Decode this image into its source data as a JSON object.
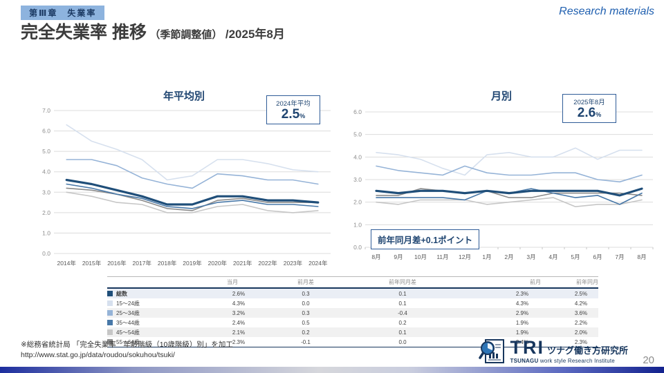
{
  "header": {
    "chapter_badge": "第Ⅲ章　失業率",
    "title_main": "完全失業率 推移",
    "title_sub": "（季節調整値）",
    "title_date": "/2025年8月",
    "watermark": "Research materials"
  },
  "chart_data": [
    {
      "type": "line",
      "title": "年平均別",
      "categories": [
        "2014年",
        "2015年",
        "2016年",
        "2017年",
        "2018年",
        "2019年",
        "2020年",
        "2021年",
        "2022年",
        "2023年",
        "2024年"
      ],
      "ylim": [
        0,
        7
      ],
      "ytick_step": 1,
      "grid": true,
      "xticks": false,
      "series": [
        {
          "name": "15～24歳",
          "color": "#d6e0ee",
          "width": 1.6,
          "values": [
            6.3,
            5.5,
            5.1,
            4.6,
            3.6,
            3.8,
            4.6,
            4.6,
            4.4,
            4.1,
            4.0
          ]
        },
        {
          "name": "25～34歳",
          "color": "#95b3d7",
          "width": 1.6,
          "values": [
            4.6,
            4.6,
            4.3,
            3.7,
            3.4,
            3.2,
            3.9,
            3.8,
            3.6,
            3.6,
            3.4
          ]
        },
        {
          "name": "45～54歳",
          "color": "#c6c6c6",
          "width": 1.6,
          "values": [
            3.0,
            2.8,
            2.5,
            2.4,
            2.0,
            2.0,
            2.3,
            2.4,
            2.1,
            2.0,
            2.1
          ]
        },
        {
          "name": "55～64歳",
          "color": "#8a8a8a",
          "width": 1.6,
          "values": [
            3.2,
            3.1,
            2.9,
            2.6,
            2.2,
            2.1,
            2.6,
            2.7,
            2.5,
            2.5,
            2.5
          ]
        },
        {
          "name": "35～44歳",
          "color": "#4878a8",
          "width": 1.6,
          "values": [
            3.4,
            3.2,
            2.9,
            2.7,
            2.3,
            2.2,
            2.5,
            2.6,
            2.4,
            2.4,
            2.3
          ]
        },
        {
          "name": "総数",
          "color": "#1f4e79",
          "width": 3.2,
          "values": [
            3.6,
            3.4,
            3.1,
            2.8,
            2.4,
            2.4,
            2.8,
            2.8,
            2.6,
            2.6,
            2.5
          ]
        }
      ],
      "callout": {
        "label": "2024年平均",
        "value": "2.5",
        "unit": "%"
      }
    },
    {
      "type": "line",
      "title": "月別",
      "categories": [
        "8月",
        "9月",
        "10月",
        "11月",
        "12月",
        "1月",
        "2月",
        "3月",
        "4月",
        "5月",
        "6月",
        "7月",
        "8月"
      ],
      "ylim": [
        0,
        6
      ],
      "ytick_step": 1,
      "grid": true,
      "xticks": true,
      "series": [
        {
          "name": "15～24歳",
          "color": "#d6e0ee",
          "width": 1.6,
          "values": [
            4.2,
            4.1,
            3.9,
            3.5,
            3.2,
            4.1,
            4.2,
            4.0,
            4.0,
            4.4,
            3.9,
            4.3,
            4.3
          ]
        },
        {
          "name": "25～34歳",
          "color": "#95b3d7",
          "width": 1.6,
          "values": [
            3.6,
            3.4,
            3.3,
            3.2,
            3.6,
            3.3,
            3.2,
            3.2,
            3.3,
            3.3,
            3.0,
            2.9,
            3.2
          ]
        },
        {
          "name": "45～54歳",
          "color": "#c6c6c6",
          "width": 1.6,
          "values": [
            2.0,
            1.9,
            2.1,
            2.1,
            2.1,
            1.9,
            2.0,
            2.1,
            2.2,
            1.8,
            1.9,
            1.9,
            2.1
          ]
        },
        {
          "name": "55～64歳",
          "color": "#8a8a8a",
          "width": 1.6,
          "values": [
            2.3,
            2.3,
            2.6,
            2.5,
            2.4,
            2.5,
            2.2,
            2.2,
            2.4,
            2.4,
            2.4,
            2.4,
            2.3
          ]
        },
        {
          "name": "35～44歳",
          "color": "#4878a8",
          "width": 1.6,
          "values": [
            2.2,
            2.2,
            2.2,
            2.2,
            2.1,
            2.5,
            2.4,
            2.6,
            2.4,
            2.2,
            2.3,
            1.9,
            2.4
          ]
        },
        {
          "name": "総数",
          "color": "#1f4e79",
          "width": 3.2,
          "values": [
            2.5,
            2.4,
            2.5,
            2.5,
            2.4,
            2.5,
            2.4,
            2.5,
            2.5,
            2.5,
            2.5,
            2.3,
            2.6
          ]
        }
      ],
      "callout": {
        "label": "2025年8月",
        "value": "2.6",
        "unit": "%"
      },
      "annotation": "前年同月差+0.1ポイント"
    }
  ],
  "table": {
    "col_headers": [
      "当月",
      "前月差",
      "前年同月差",
      "前月",
      "前年同月"
    ],
    "rows": [
      {
        "label": "総数",
        "color": "#1f4e79",
        "current": "2.6",
        "unit": "%",
        "mom_diff": "0.3",
        "yoy_diff": "0.1",
        "prev_month": "2.3",
        "prev_month_unit": "%",
        "prev_year": "2.5",
        "prev_year_unit": "%"
      },
      {
        "label": "15～24歳",
        "color": "#d6e0ee",
        "current": "4.3",
        "unit": "%",
        "mom_diff": "0.0",
        "yoy_diff": "0.1",
        "prev_month": "4.3",
        "prev_month_unit": "%",
        "prev_year": "4.2",
        "prev_year_unit": "%"
      },
      {
        "label": "25～34歳",
        "color": "#95b3d7",
        "current": "3.2",
        "unit": "%",
        "mom_diff": "0.3",
        "yoy_diff": "-0.4",
        "prev_month": "2.9",
        "prev_month_unit": "%",
        "prev_year": "3.6",
        "prev_year_unit": "%"
      },
      {
        "label": "35～44歳",
        "color": "#4878a8",
        "current": "2.4",
        "unit": "%",
        "mom_diff": "0.5",
        "yoy_diff": "0.2",
        "prev_month": "1.9",
        "prev_month_unit": "%",
        "prev_year": "2.2",
        "prev_year_unit": "%"
      },
      {
        "label": "45～54歳",
        "color": "#c6c6c6",
        "current": "2.1",
        "unit": "%",
        "mom_diff": "0.2",
        "yoy_diff": "0.1",
        "prev_month": "1.9",
        "prev_month_unit": "%",
        "prev_year": "2.0",
        "prev_year_unit": "%"
      },
      {
        "label": "55～64歳",
        "color": "#8a8a8a",
        "current": "2.3",
        "unit": "%",
        "mom_diff": "-0.1",
        "yoy_diff": "0.0",
        "prev_month": "2.4",
        "prev_month_unit": "%",
        "prev_year": "2.3",
        "prev_year_unit": "%"
      }
    ]
  },
  "footer": {
    "source_line1": "※総務省統計局 「完全失業率　年齢階級（10歳階級）別」を加工",
    "source_line2": "http://www.stat.go.jp/data/roudou/sokuhou/tsuki/",
    "logo": {
      "tri": "TRI",
      "jp": "ツナグ働き方研究所",
      "en_bold": "TSUNAGU",
      "en_rest": " work style Research Institute"
    },
    "page_number": "20"
  },
  "colors": {
    "accent_navy": "#1f4571",
    "badge_bg": "#8db3de",
    "callout_border": "#2e5b97",
    "table_rule": "#17365d"
  }
}
